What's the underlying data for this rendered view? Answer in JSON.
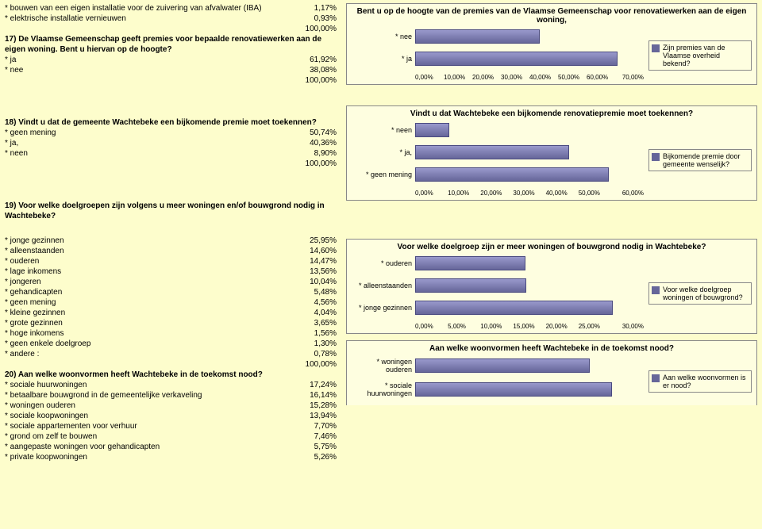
{
  "top_rows": [
    {
      "label": "* bouwen van een eigen installatie voor de zuivering van afvalwater (IBA)",
      "val": "1,17%"
    },
    {
      "label": "* elektrische installatie vernieuwen",
      "val": "0,93%"
    },
    {
      "label": "",
      "val": "100,00%"
    }
  ],
  "q17": {
    "title": "17) De Vlaamse Gemeenschap geeft premies voor bepaalde renovatiewerken aan de eigen woning. Bent u hiervan op de hoogte?",
    "rows": [
      {
        "label": "* ja",
        "val": "61,92%"
      },
      {
        "label": "* nee",
        "val": "38,08%"
      },
      {
        "label": "",
        "val": "100,00%"
      }
    ]
  },
  "q18": {
    "title": "18) Vindt u dat de gemeente Wachtebeke een bijkomende premie moet toekennen?",
    "rows": [
      {
        "label": "* geen mening",
        "val": "50,74%"
      },
      {
        "label": "* ja,",
        "val": "40,36%"
      },
      {
        "label": "* neen",
        "val": "8,90%"
      },
      {
        "label": "",
        "val": "100,00%"
      }
    ]
  },
  "q19": {
    "title": "19) Voor welke doelgroepen zijn volgens u meer woningen en/of bouwgrond nodig in Wachtebeke?",
    "rows": [
      {
        "label": "* jonge gezinnen",
        "val": "25,95%"
      },
      {
        "label": "* alleenstaanden",
        "val": "14,60%"
      },
      {
        "label": "* ouderen",
        "val": "14,47%"
      },
      {
        "label": "* lage inkomens",
        "val": "13,56%"
      },
      {
        "label": "* jongeren",
        "val": "10,04%"
      },
      {
        "label": "* gehandicapten",
        "val": "5,48%"
      },
      {
        "label": "* geen mening",
        "val": "4,56%"
      },
      {
        "label": "* kleine gezinnen",
        "val": "4,04%"
      },
      {
        "label": "* grote gezinnen",
        "val": "3,65%"
      },
      {
        "label": "* hoge inkomens",
        "val": "1,56%"
      },
      {
        "label": "* geen enkele doelgroep",
        "val": "1,30%"
      },
      {
        "label": "* andere :",
        "val": "0,78%"
      },
      {
        "label": "",
        "val": "100,00%"
      }
    ]
  },
  "q20": {
    "title": "20) Aan welke woonvormen heeft Wachtebeke in de toekomst nood?",
    "rows": [
      {
        "label": "* sociale huurwoningen",
        "val": "17,24%"
      },
      {
        "label": "* betaalbare bouwgrond in de gemeentelijke verkaveling",
        "val": "16,14%"
      },
      {
        "label": "* woningen ouderen",
        "val": "15,28%"
      },
      {
        "label": "* sociale koopwoningen",
        "val": "13,94%"
      },
      {
        "label": "* sociale appartementen voor verhuur",
        "val": "7,70%"
      },
      {
        "label": "* grond om zelf te bouwen",
        "val": "7,46%"
      },
      {
        "label": "* aangepaste woningen voor gehandicapten",
        "val": "5,75%"
      },
      {
        "label": "* private koopwoningen",
        "val": "5,26%"
      }
    ]
  },
  "chart17": {
    "title": "Bent u op de hoogte van de premies van de Vlaamse Gemeenschap voor renovatiewerken aan de eigen woning,",
    "bars": [
      {
        "label": "* nee",
        "pct": 54.4
      },
      {
        "label": "* ja",
        "pct": 88.5
      }
    ],
    "ticks": [
      "0,00%",
      "10,00%",
      "20,00%",
      "30,00%",
      "40,00%",
      "50,00%",
      "60,00%",
      "70,00%"
    ],
    "legend": "Zijn premies van de Vlaamse overheid bekend?"
  },
  "chart18": {
    "title": "Vindt u dat Wachtebeke een bijkomende renovatiepremie moet toekennen?",
    "bars": [
      {
        "label": "* neen",
        "pct": 14.8
      },
      {
        "label": "* ja,",
        "pct": 67.3
      },
      {
        "label": "* geen mening",
        "pct": 84.6
      }
    ],
    "ticks": [
      "0,00%",
      "10,00%",
      "20,00%",
      "30,00%",
      "40,00%",
      "50,00%",
      "60,00%"
    ],
    "legend": "Bijkomende premie door gemeente wenselijk?"
  },
  "chart19": {
    "title": "Voor welke doelgroep zijn er meer woningen of bouwgrond nodig in Wachtebeke?",
    "bars": [
      {
        "label": "* ouderen",
        "pct": 48.2
      },
      {
        "label": "* alleenstaanden",
        "pct": 48.7
      },
      {
        "label": "* jonge gezinnen",
        "pct": 86.5
      }
    ],
    "ticks": [
      "0,00%",
      "5,00%",
      "10,00%",
      "15,00%",
      "20,00%",
      "25,00%",
      "30,00%"
    ],
    "legend": "Voor welke doelgroep woningen of bouwgrond?"
  },
  "chart20": {
    "title": "Aan welke woonvormen heeft Wachtebeke in de toekomst nood?",
    "bars": [
      {
        "label": "* woningen ouderen",
        "pct": 76.4
      },
      {
        "label": "* sociale huurwoningen",
        "pct": 86.2
      }
    ],
    "ticks": [],
    "legend": "Aan welke woonvormen is er nood?"
  }
}
